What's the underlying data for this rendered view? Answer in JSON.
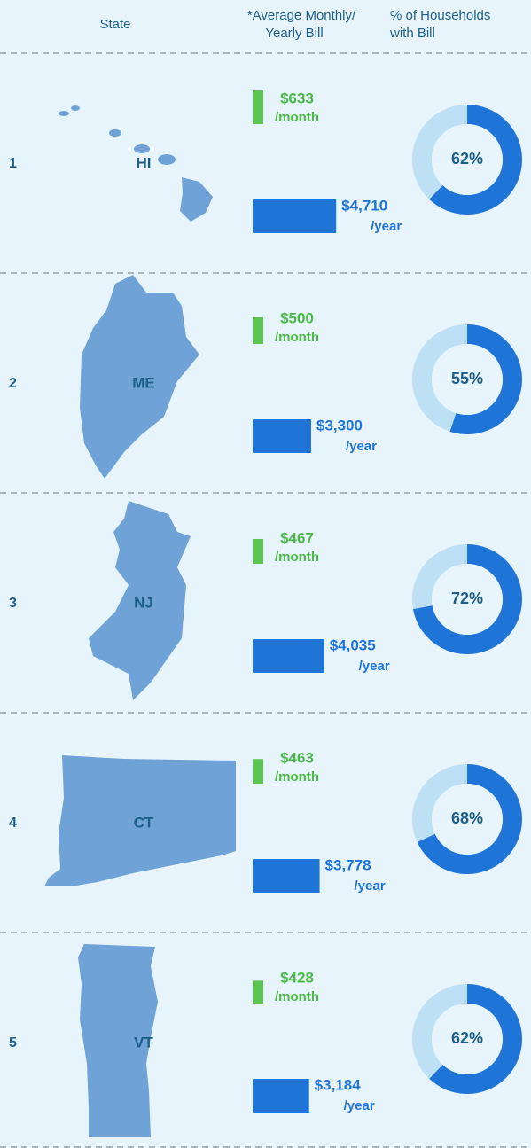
{
  "header": {
    "state": "State",
    "bill": [
      "*Average Monthly/",
      "Yearly Bill"
    ],
    "pct": [
      "% of Households",
      "with Bill"
    ],
    "month_unit": "/month",
    "year_unit": "/year"
  },
  "rows": [
    {
      "rank": "1",
      "state": "HI",
      "monthly": 633,
      "monthly_label": "$633",
      "yearly": 4710,
      "yearly_label": "$4,710",
      "pct": 62,
      "pct_label": "62%"
    },
    {
      "rank": "2",
      "state": "ME",
      "monthly": 500,
      "monthly_label": "$500",
      "yearly": 3300,
      "yearly_label": "$3,300",
      "pct": 55,
      "pct_label": "55%"
    },
    {
      "rank": "3",
      "state": "NJ",
      "monthly": 467,
      "monthly_label": "$467",
      "yearly": 4035,
      "yearly_label": "$4,035",
      "pct": 72,
      "pct_label": "72%"
    },
    {
      "rank": "4",
      "state": "CT",
      "monthly": 463,
      "monthly_label": "$463",
      "yearly": 3778,
      "yearly_label": "$3,778",
      "pct": 68,
      "pct_label": "68%"
    },
    {
      "rank": "5",
      "state": "VT",
      "monthly": 428,
      "monthly_label": "$428",
      "yearly": 3184,
      "yearly_label": "$3,184",
      "pct": 62,
      "pct_label": "62%"
    }
  ]
}
